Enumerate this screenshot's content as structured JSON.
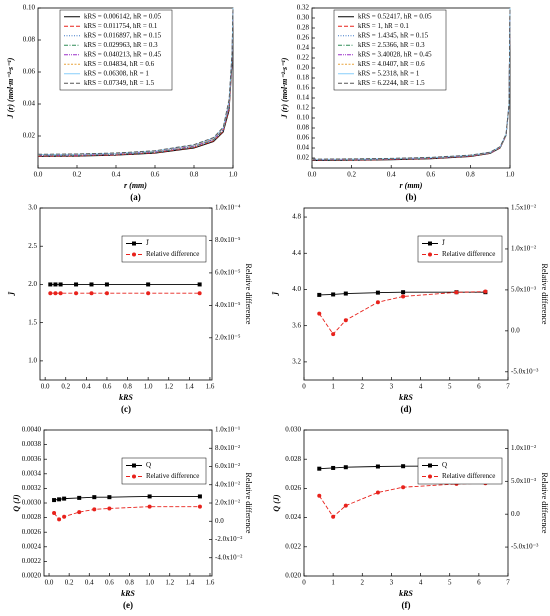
{
  "chart_data": [
    {
      "type": "line",
      "caption": "(a)",
      "xlabel": "r (mm)",
      "ylabel": "J (r) (mol·m⁻²·s⁻¹)",
      "legend": "upper left",
      "xlim": [
        0,
        1
      ],
      "ylim": [
        0,
        0.1
      ],
      "xticks": [
        {
          "value": 0,
          "label": "0.0"
        },
        0.2,
        0.4,
        0.6,
        0.8,
        {
          "value": 1,
          "label": "1.0"
        }
      ],
      "yticks": [
        0.02,
        0.04,
        0.06,
        0.08,
        {
          "value": 0.1,
          "label": "0.10"
        }
      ],
      "x": [
        0,
        0.2,
        0.4,
        0.6,
        0.8,
        0.9,
        0.95,
        0.98,
        0.995,
        1.0
      ],
      "series": [
        {
          "name": "kRS = 0.006142, hR = 0.05",
          "color": "#000000",
          "style": "solid",
          "values": [
            0.0072,
            0.0074,
            0.008,
            0.0093,
            0.0125,
            0.0165,
            0.0225,
            0.036,
            0.065,
            0.1
          ]
        },
        {
          "name": "kRS = 0.011754, hR = 0.1",
          "color": "#e8221c",
          "style": "dashed",
          "values": [
            0.0074,
            0.0076,
            0.0082,
            0.0095,
            0.0128,
            0.0169,
            0.023,
            0.037,
            0.066,
            0.1
          ]
        },
        {
          "name": "kRS = 0.016897, hR = 0.15",
          "color": "#3c78c8",
          "style": "dotted",
          "values": [
            0.0076,
            0.0078,
            0.0084,
            0.0097,
            0.0131,
            0.0172,
            0.0234,
            0.038,
            0.067,
            0.1
          ]
        },
        {
          "name": "kRS = 0.029963, hR = 0.3",
          "color": "#2e8b57",
          "style": "dashdot",
          "values": [
            0.0078,
            0.008,
            0.0086,
            0.0099,
            0.0134,
            0.0176,
            0.0238,
            0.039,
            0.068,
            0.1
          ]
        },
        {
          "name": "kRS = 0.040213, hR = 0.45",
          "color": "#9b30c8",
          "style": "dashdotdot",
          "values": [
            0.008,
            0.0082,
            0.0088,
            0.0102,
            0.0137,
            0.018,
            0.0243,
            0.04,
            0.069,
            0.1
          ]
        },
        {
          "name": "kRS = 0.04834, hR = 0.6",
          "color": "#e8a33c",
          "style": "shortdash",
          "values": [
            0.0082,
            0.0084,
            0.009,
            0.0104,
            0.014,
            0.0183,
            0.0247,
            0.041,
            0.07,
            0.1
          ]
        },
        {
          "name": "kRS = 0.06308, hR = 1",
          "color": "#87cefa",
          "style": "solid",
          "values": [
            0.0084,
            0.0086,
            0.0092,
            0.0106,
            0.0143,
            0.0187,
            0.0251,
            0.042,
            0.071,
            0.1
          ]
        },
        {
          "name": "kRS = 0.07349, hR = 1.5",
          "color": "#555555",
          "style": "dashed",
          "values": [
            0.0086,
            0.0088,
            0.0094,
            0.0108,
            0.0146,
            0.019,
            0.0255,
            0.043,
            0.072,
            0.1
          ]
        }
      ]
    },
    {
      "type": "line",
      "caption": "(b)",
      "xlabel": "r (mm)",
      "ylabel": "J (r) (mol·m⁻²·s⁻¹)",
      "legend": "upper left",
      "xlim": [
        0,
        1
      ],
      "ylim": [
        0,
        0.32
      ],
      "xticks": [
        {
          "value": 0,
          "label": "0.0"
        },
        0.2,
        0.4,
        0.6,
        0.8,
        {
          "value": 1,
          "label": "1.0"
        }
      ],
      "yticks": [
        0.02,
        0.04,
        0.06,
        0.08,
        {
          "value": 0.1,
          "label": "0.10"
        },
        0.12,
        0.14,
        0.16,
        0.18,
        {
          "value": 0.2,
          "label": "0.20"
        },
        0.22,
        0.24,
        0.26,
        0.28,
        {
          "value": 0.3,
          "label": "0.30"
        },
        0.32
      ],
      "x": [
        0,
        0.2,
        0.4,
        0.6,
        0.8,
        0.9,
        0.95,
        0.98,
        0.995,
        1.0
      ],
      "series": [
        {
          "name": "kRS = 0.52417, hR = 0.05",
          "color": "#000000",
          "style": "solid",
          "values": [
            0.015,
            0.0155,
            0.0165,
            0.0185,
            0.023,
            0.029,
            0.04,
            0.065,
            0.125,
            0.32
          ]
        },
        {
          "name": "kRS = 1,        hR = 0.1",
          "color": "#e8221c",
          "style": "dashed",
          "values": [
            0.0154,
            0.0159,
            0.0169,
            0.0189,
            0.0234,
            0.0294,
            0.0404,
            0.0654,
            0.1254,
            0.32
          ]
        },
        {
          "name": "kRS = 1.4345, hR = 0.15",
          "color": "#3c78c8",
          "style": "dotted",
          "values": [
            0.0158,
            0.0163,
            0.0173,
            0.0193,
            0.0238,
            0.0298,
            0.0408,
            0.0658,
            0.1258,
            0.32
          ]
        },
        {
          "name": "kRS = 2.5366, hR = 0.3",
          "color": "#2e8b57",
          "style": "dashdot",
          "values": [
            0.0162,
            0.0167,
            0.0177,
            0.0197,
            0.0242,
            0.0302,
            0.0412,
            0.0662,
            0.1262,
            0.32
          ]
        },
        {
          "name": "kRS = 3.40028, hR = 0.45",
          "color": "#9b30c8",
          "style": "dashdotdot",
          "values": [
            0.0166,
            0.0171,
            0.0181,
            0.0201,
            0.0246,
            0.0306,
            0.0416,
            0.0666,
            0.1266,
            0.32
          ]
        },
        {
          "name": "kRS = 4.0407, hR = 0.6",
          "color": "#e8a33c",
          "style": "shortdash",
          "values": [
            0.017,
            0.0175,
            0.0185,
            0.0205,
            0.025,
            0.031,
            0.042,
            0.067,
            0.127,
            0.32
          ]
        },
        {
          "name": "kRS = 5.2318, hR = 1",
          "color": "#87cefa",
          "style": "solid",
          "values": [
            0.0174,
            0.0179,
            0.0189,
            0.0209,
            0.0254,
            0.0314,
            0.0424,
            0.0674,
            0.1274,
            0.32
          ]
        },
        {
          "name": "kRS = 6.2244, hR = 1.5",
          "color": "#555555",
          "style": "dashed",
          "values": [
            0.0178,
            0.0183,
            0.0193,
            0.0213,
            0.0258,
            0.0318,
            0.0428,
            0.0678,
            0.1278,
            0.32
          ]
        }
      ]
    },
    {
      "type": "line",
      "caption": "(c)",
      "xlabel": "kRS",
      "ylabel": "J̄",
      "y2label": "Relative difference",
      "legend": "upper right",
      "xlim": [
        -0.05,
        1.62
      ],
      "ylim": [
        0.75,
        3.0
      ],
      "y2lim": [
        -6e-06,
        0.0001
      ],
      "xticks": [
        {
          "value": 0,
          "label": "0.0"
        },
        0.2,
        0.4,
        0.6,
        0.8,
        {
          "value": 1,
          "label": "1.0"
        },
        1.2,
        1.4,
        1.6
      ],
      "yticks": [
        {
          "value": 1,
          "label": "1.0"
        },
        1.5,
        {
          "value": 2,
          "label": "2.0"
        },
        2.5,
        {
          "value": 3,
          "label": "3.0"
        }
      ],
      "y2ticks": [
        {
          "value": 2e-05,
          "label": "2.0x10⁻⁵"
        },
        {
          "value": 4e-05,
          "label": "4.0x10⁻⁵"
        },
        {
          "value": 6e-05,
          "label": "6.0x10⁻⁵"
        },
        {
          "value": 8e-05,
          "label": "8.0x10⁻⁵"
        },
        {
          "value": 0.0001,
          "label": "1.0x10⁻⁴"
        }
      ],
      "x": [
        0.05,
        0.1,
        0.15,
        0.3,
        0.45,
        0.6,
        1,
        1.5
      ],
      "series": [
        {
          "name": "J̄",
          "color": "#000000",
          "style": "solid",
          "marker": "square",
          "values": [
            2.0,
            2.0,
            2.0,
            2.0,
            2.0,
            2.0,
            2.0,
            2.0
          ]
        },
        {
          "name": "Relative difference",
          "color": "#e8221c",
          "style": "dashed",
          "marker": "circle",
          "axis": "y2",
          "values": [
            4.75e-05,
            4.75e-05,
            4.75e-05,
            4.75e-05,
            4.75e-05,
            4.75e-05,
            4.75e-05,
            4.75e-05
          ]
        }
      ]
    },
    {
      "type": "line",
      "caption": "(d)",
      "xlabel": "kRS",
      "ylabel": "J̄",
      "y2label": "Relative difference",
      "legend": "upper right",
      "xlim": [
        0,
        7
      ],
      "ylim": [
        3.0,
        4.9
      ],
      "y2lim": [
        -0.006,
        0.015
      ],
      "xticks": [
        0,
        1,
        2,
        3,
        4,
        5,
        6,
        7
      ],
      "yticks": [
        3.2,
        3.6,
        {
          "value": 4,
          "label": "4.0"
        },
        4.4,
        4.8
      ],
      "y2ticks": [
        {
          "value": -0.005,
          "label": "-5.0x10⁻³"
        },
        {
          "value": 0,
          "label": "0.0"
        },
        {
          "value": 0.005,
          "label": "5.0x10⁻³"
        },
        {
          "value": 0.01,
          "label": "1.0x10⁻²"
        },
        {
          "value": 0.015,
          "label": "1.5x10⁻²"
        }
      ],
      "x": [
        0.52417,
        1,
        1.4345,
        2.5366,
        3.40028,
        5.2318,
        6.2244
      ],
      "series": [
        {
          "name": "J̄",
          "color": "#000000",
          "style": "solid",
          "marker": "square",
          "values": [
            3.94,
            3.945,
            3.955,
            3.965,
            3.97,
            3.97,
            3.97
          ]
        },
        {
          "name": "Relative difference",
          "color": "#e8221c",
          "style": "dashed",
          "marker": "circle",
          "axis": "y2",
          "values": [
            0.0021,
            -0.0004,
            0.0013,
            0.0035,
            0.0042,
            0.0047,
            0.0048
          ]
        }
      ]
    },
    {
      "type": "line",
      "caption": "(e)",
      "xlabel": "kRS",
      "ylabel": "Q (J)",
      "y2label": "Relative difference",
      "legend": "upper right",
      "xlim": [
        -0.05,
        1.62
      ],
      "ylim": [
        0.002,
        0.004
      ],
      "y2lim": [
        -0.06,
        0.1
      ],
      "xticks": [
        {
          "value": 0,
          "label": "0.0"
        },
        0.2,
        0.4,
        0.6,
        0.8,
        {
          "value": 1,
          "label": "1.0"
        },
        1.2,
        1.4,
        1.6
      ],
      "yticks": [
        {
          "value": 0.002,
          "label": "0.0020"
        },
        {
          "value": 0.0022,
          "label": "0.0022"
        },
        {
          "value": 0.0024,
          "label": "0.0024"
        },
        {
          "value": 0.0026,
          "label": "0.0026"
        },
        {
          "value": 0.0028,
          "label": "0.0028"
        },
        {
          "value": 0.003,
          "label": "0.0030"
        },
        {
          "value": 0.0032,
          "label": "0.0032"
        },
        {
          "value": 0.0034,
          "label": "0.0034"
        },
        {
          "value": 0.0036,
          "label": "0.0036"
        },
        {
          "value": 0.0038,
          "label": "0.0038"
        },
        {
          "value": 0.004,
          "label": "0.0040"
        }
      ],
      "y2ticks": [
        {
          "value": -0.04,
          "label": "-4.0x10⁻²"
        },
        {
          "value": -0.02,
          "label": "-2.0x10⁻²"
        },
        {
          "value": 0,
          "label": "0.0"
        },
        {
          "value": 0.02,
          "label": "2.0x10⁻²"
        },
        {
          "value": 0.04,
          "label": "4.0x10⁻²"
        },
        {
          "value": 0.06,
          "label": "6.0x10⁻²"
        },
        {
          "value": 0.08,
          "label": "8.0x10⁻²"
        },
        {
          "value": 0.1,
          "label": "1.0x10⁻¹"
        }
      ],
      "x": [
        0.05,
        0.1,
        0.15,
        0.3,
        0.45,
        0.6,
        1,
        1.5
      ],
      "series": [
        {
          "name": "Q",
          "color": "#000000",
          "style": "solid",
          "marker": "square",
          "values": [
            0.00304,
            0.00305,
            0.00306,
            0.00307,
            0.00308,
            0.00308,
            0.00309,
            0.00309
          ]
        },
        {
          "name": "Relative difference",
          "color": "#e8221c",
          "style": "dashed",
          "marker": "circle",
          "axis": "y2",
          "values": [
            0.009,
            0.002,
            0.005,
            0.01,
            0.013,
            0.014,
            0.016,
            0.016
          ]
        }
      ]
    },
    {
      "type": "line",
      "caption": "(f)",
      "xlabel": "kRS",
      "ylabel": "Q (J)",
      "y2label": "Relative difference",
      "legend": "upper right",
      "xlim": [
        0,
        7
      ],
      "ylim": [
        0.02,
        0.03
      ],
      "y2lim": [
        -0.0094,
        0.0128
      ],
      "xticks": [
        0,
        1,
        2,
        3,
        4,
        5,
        6,
        7
      ],
      "yticks": [
        {
          "value": 0.02,
          "label": "0.020"
        },
        0.022,
        0.024,
        0.026,
        0.028,
        {
          "value": 0.03,
          "label": "0.030"
        }
      ],
      "y2ticks": [
        {
          "value": -0.005,
          "label": "-5.0x10⁻³"
        },
        {
          "value": 0,
          "label": "0.0"
        },
        {
          "value": 0.005,
          "label": "5.0x10⁻³"
        },
        {
          "value": 0.01,
          "label": "1.0x10⁻²"
        }
      ],
      "x": [
        0.52417,
        1,
        1.4345,
        2.5366,
        3.40028,
        5.2318,
        6.2244
      ],
      "series": [
        {
          "name": "Q",
          "color": "#000000",
          "style": "solid",
          "marker": "square",
          "values": [
            0.02735,
            0.0274,
            0.02745,
            0.0275,
            0.02752,
            0.02753,
            0.02753
          ]
        },
        {
          "name": "Relative difference",
          "color": "#e8221c",
          "style": "dashed",
          "marker": "circle",
          "axis": "y2",
          "values": [
            0.0028,
            -0.0004,
            0.0013,
            0.0033,
            0.0041,
            0.0046,
            0.0047
          ]
        }
      ]
    }
  ]
}
